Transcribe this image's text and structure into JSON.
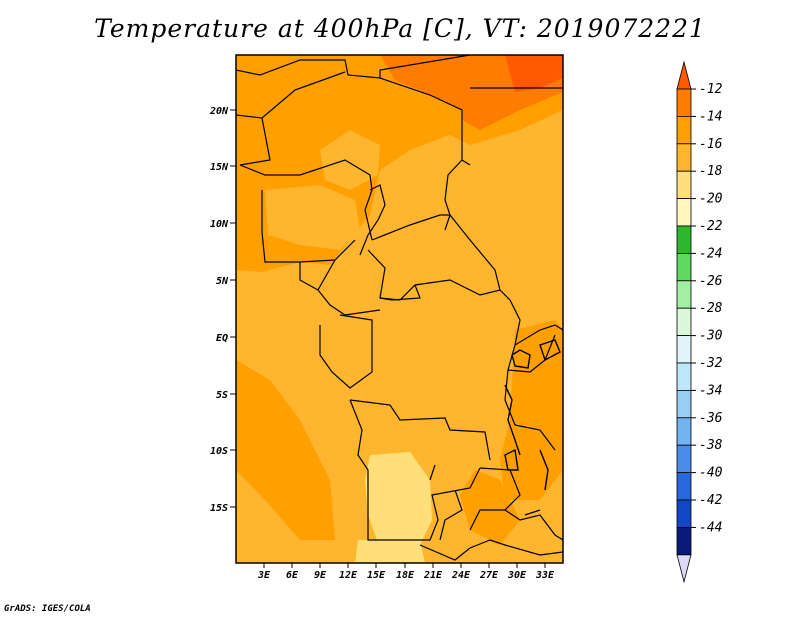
{
  "title": "Temperature at 400hPa [C], VT: 2019072221",
  "footer": "GrADS: IGES/COLA",
  "map": {
    "lat_labels": [
      "20N",
      "15N",
      "10N",
      "5N",
      "EQ",
      "5S",
      "10S",
      "15S"
    ],
    "lon_labels": [
      "3E",
      "6E",
      "9E",
      "12E",
      "15E",
      "18E",
      "21E",
      "24E",
      "27E",
      "30E",
      "33E"
    ]
  },
  "colorbar": {
    "levels": [
      "-12",
      "-14",
      "-16",
      "-18",
      "-20",
      "-22",
      "-24",
      "-26",
      "-28",
      "-30",
      "-32",
      "-34",
      "-36",
      "-38",
      "-40",
      "-42",
      "-44"
    ],
    "colors": [
      "#ff5a00",
      "#ff7c00",
      "#ff9f00",
      "#ffb52e",
      "#ffdf7a",
      "#fff8c0",
      "#2db82d",
      "#61d961",
      "#a2eea2",
      "#daf9d8",
      "#e1f4fb",
      "#bde6f8",
      "#99cdf3",
      "#72b3f0",
      "#4b8ee9",
      "#2967de",
      "#1248c6",
      "#0a1a78",
      "#dcd8f5"
    ]
  },
  "colors": {
    "deep_orange": "#ff7c00",
    "orange": "#ff9f00",
    "light_orange": "#ffb52e",
    "pale_yellow": "#ffdf7a",
    "red_orange": "#ff5a00"
  }
}
